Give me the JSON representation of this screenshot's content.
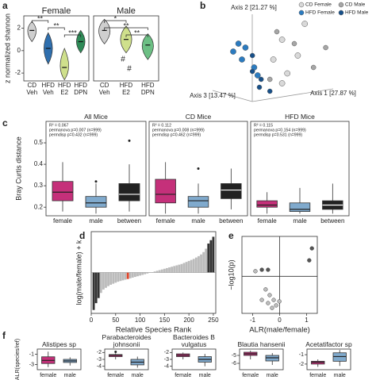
{
  "panel_labels": [
    "a",
    "b",
    "c",
    "d",
    "e",
    "f"
  ],
  "chart_data": [
    {
      "type": "violin",
      "title": "Female",
      "ylabel": "z normalized shannon",
      "ylim": [
        -2.7,
        3.1
      ],
      "yticks": [
        -2,
        0,
        2
      ],
      "categories": [
        "CD Veh",
        "HFD Veh",
        "HFD E2",
        "HFD DPN"
      ],
      "values": [
        1.8,
        0.2,
        -1.5,
        0.8
      ],
      "mins": [
        0.8,
        -1.2,
        -2.6,
        -0.2
      ],
      "maxs": [
        2.6,
        1.6,
        0.2,
        1.8
      ],
      "colors": [
        "#cfcfcf",
        "#2f6fae",
        "#cfe08c",
        "#2e8b57"
      ],
      "brackets": [
        {
          "label": "**",
          "between": [
            0,
            1
          ]
        },
        {
          "label": "**",
          "between": [
            1,
            2
          ]
        },
        {
          "label": "***",
          "between": [
            2,
            3
          ]
        }
      ]
    },
    {
      "type": "violin",
      "title": "Male",
      "ylim": [
        -2.7,
        3.1
      ],
      "categories": [
        "CD Veh",
        "HFD E2",
        "HFD DPN"
      ],
      "values": [
        1.8,
        1.0,
        0.5
      ],
      "mins": [
        0.6,
        -0.2,
        -0.8
      ],
      "maxs": [
        2.8,
        2.2,
        1.5
      ],
      "colors": [
        "#cfcfcf",
        "#cfe08c",
        "#6cbf84"
      ],
      "brackets": [
        {
          "label": "*",
          "between": [
            0,
            1
          ]
        },
        {
          "label": "**",
          "between": [
            0,
            2
          ]
        },
        {
          "label": "**",
          "between": [
            1,
            2
          ]
        }
      ],
      "hashes": [
        {
          "label": "#",
          "category": 1
        },
        {
          "label": "#",
          "category": 1
        }
      ]
    },
    {
      "type": "scatter",
      "axis_labels": [
        "Axis 2 [21.27 %]",
        "Axis 3 [13.47 %]",
        "Axis 1 [27.87 %]"
      ],
      "xlim": [
        0,
        1
      ],
      "ylim": [
        0,
        1
      ],
      "legend": "top-right",
      "series": [
        {
          "name": "CD Female",
          "color": "#d9d9d9",
          "x": [
            0.61,
            0.48,
            0.57,
            0.43,
            0.51,
            0.48
          ],
          "values": [
            0.84,
            0.68,
            0.52,
            0.48,
            0.34,
            0.24
          ]
        },
        {
          "name": "CD Male",
          "color": "#a6a6a6",
          "x": [
            0.55,
            0.73,
            0.45,
            0.41,
            0.66
          ],
          "values": [
            0.64,
            0.6,
            0.76,
            0.28,
            0.4
          ]
        },
        {
          "name": "HFD Female",
          "color": "#2b7bc0",
          "x": [
            0.23,
            0.27,
            0.2,
            0.25,
            0.32,
            0.34
          ],
          "values": [
            0.64,
            0.6,
            0.56,
            0.48,
            0.4,
            0.32
          ]
        },
        {
          "name": "HFD Male",
          "color": "#17508a",
          "x": [
            0.31,
            0.36,
            0.35,
            0.41,
            0.31
          ],
          "values": [
            0.52,
            0.28,
            0.2,
            0.16,
            0.36
          ]
        }
      ]
    },
    {
      "type": "box",
      "title": "All Mice",
      "ylabel": "Bray Curtis distance",
      "ylim": [
        0.16,
        0.6
      ],
      "yticks": [
        0.2,
        0.3,
        0.4,
        0.5
      ],
      "stats": [
        "R² = 0.067",
        "permanova p=0.007 (n=999)",
        "permdisp p=0.432 (n=999)"
      ],
      "categories": [
        "female",
        "male",
        "between"
      ],
      "colors": [
        "#c5307a",
        "#80aacd",
        "#222222"
      ],
      "boxes": [
        {
          "whislo": 0.18,
          "q1": 0.23,
          "med": 0.27,
          "q3": 0.32,
          "whishi": 0.41,
          "fliers": []
        },
        {
          "whislo": 0.17,
          "q1": 0.2,
          "med": 0.22,
          "q3": 0.25,
          "whishi": 0.31,
          "fliers": [
            0.32
          ]
        },
        {
          "whislo": 0.18,
          "q1": 0.23,
          "med": 0.26,
          "q3": 0.31,
          "whishi": 0.4,
          "fliers": [
            0.51
          ]
        }
      ]
    },
    {
      "type": "box",
      "title": "CD Mice",
      "ylim": [
        0.16,
        0.6
      ],
      "stats": [
        "R² = 0.112",
        "permanova p=0.008 (n=999)",
        "permdisp p=0.462 (n=999)"
      ],
      "categories": [
        "female",
        "male",
        "between"
      ],
      "colors": [
        "#c5307a",
        "#80aacd",
        "#222222"
      ],
      "boxes": [
        {
          "whislo": 0.17,
          "q1": 0.22,
          "med": 0.26,
          "q3": 0.33,
          "whishi": 0.41,
          "fliers": []
        },
        {
          "whislo": 0.17,
          "q1": 0.2,
          "med": 0.23,
          "q3": 0.25,
          "whishi": 0.31,
          "fliers": [
            0.38
          ]
        },
        {
          "whislo": 0.19,
          "q1": 0.24,
          "med": 0.28,
          "q3": 0.31,
          "whishi": 0.38,
          "fliers": []
        }
      ]
    },
    {
      "type": "box",
      "title": "HFD Mice",
      "ylim": [
        0.16,
        0.6
      ],
      "stats": [
        "R² = 0.115",
        "permanova p=0.154 (n=999)",
        "permdisp p=0.531 (n=999)"
      ],
      "categories": [
        "female",
        "male",
        "between"
      ],
      "colors": [
        "#c5307a",
        "#80aacd",
        "#222222"
      ],
      "boxes": [
        {
          "whislo": 0.17,
          "q1": 0.2,
          "med": 0.21,
          "q3": 0.23,
          "whishi": 0.27,
          "fliers": []
        },
        {
          "whislo": 0.17,
          "q1": 0.18,
          "med": 0.19,
          "q3": 0.22,
          "whishi": 0.29,
          "fliers": []
        },
        {
          "whislo": 0.17,
          "q1": 0.19,
          "med": 0.21,
          "q3": 0.23,
          "whishi": 0.31,
          "fliers": []
        }
      ]
    },
    {
      "type": "bar",
      "ylabel": "log(male/female) + k",
      "xlabel": "Relative Species Rank",
      "xlim": [
        0,
        255
      ],
      "xticks": [
        0,
        50,
        100,
        150,
        200,
        250
      ],
      "ylim": [
        -1.2,
        1.2
      ],
      "x": [
        5,
        10,
        15,
        20,
        25,
        30,
        35,
        40,
        45,
        50,
        55,
        60,
        65,
        70,
        75,
        80,
        85,
        90,
        95,
        100,
        105,
        110,
        115,
        120,
        125,
        130,
        135,
        140,
        145,
        150,
        155,
        160,
        165,
        170,
        175,
        180,
        185,
        190,
        195,
        200,
        205,
        210,
        215,
        220,
        225,
        230,
        235,
        240,
        245,
        250
      ],
      "values": [
        -1.1,
        -0.9,
        -0.75,
        -0.6,
        -0.5,
        -0.45,
        -0.4,
        -0.36,
        -0.33,
        -0.3,
        -0.27,
        -0.25,
        -0.23,
        -0.21,
        -0.19,
        -0.17,
        -0.15,
        -0.13,
        -0.11,
        -0.09,
        -0.07,
        -0.05,
        -0.03,
        -0.01,
        0.01,
        0.03,
        0.05,
        0.07,
        0.09,
        0.11,
        0.13,
        0.15,
        0.17,
        0.19,
        0.21,
        0.23,
        0.25,
        0.28,
        0.31,
        0.34,
        0.37,
        0.4,
        0.44,
        0.48,
        0.53,
        0.6,
        0.7,
        0.85,
        0.95,
        1.05
      ],
      "colors": [
        "#333333",
        "#333333",
        "#333333",
        "#bbbbbb",
        "#bbbbbb",
        "#bbbbbb",
        "#bbbbbb",
        "#bbbbbb",
        "#bbbbbb",
        "#bbbbbb",
        "#bbbbbb",
        "#bbbbbb",
        "#bbbbbb",
        "#bbbbbb",
        "#e0452b",
        "#bbbbbb",
        "#bbbbbb",
        "#bbbbbb",
        "#bbbbbb",
        "#bbbbbb",
        "#bbbbbb",
        "#bbbbbb",
        "#bbbbbb",
        "#bbbbbb",
        "#bbbbbb",
        "#bbbbbb",
        "#bbbbbb",
        "#bbbbbb",
        "#bbbbbb",
        "#bbbbbb",
        "#bbbbbb",
        "#bbbbbb",
        "#bbbbbb",
        "#bbbbbb",
        "#bbbbbb",
        "#bbbbbb",
        "#bbbbbb",
        "#bbbbbb",
        "#bbbbbb",
        "#bbbbbb",
        "#bbbbbb",
        "#bbbbbb",
        "#bbbbbb",
        "#bbbbbb",
        "#bbbbbb",
        "#bbbbbb",
        "#bbbbbb",
        "#333333",
        "#333333",
        "#333333"
      ]
    },
    {
      "type": "scatter",
      "ylabel": "−log10(p)",
      "xlabel": "ALR(male/female)",
      "xlim": [
        -1.4,
        1.4
      ],
      "xticks": [
        -1,
        0,
        1
      ],
      "ylim": [
        0,
        2.7
      ],
      "threshold": 1.3,
      "vline": 0,
      "series": [
        {
          "color": "#555555",
          "x": [
            -0.66,
            -0.43,
            1.1,
            1.2
          ],
          "values": [
            1.53,
            1.53,
            1.86,
            2.28
          ]
        },
        {
          "color": "#bdbdbd",
          "x": [
            -0.9,
            -0.52,
            -0.37,
            -0.22,
            -0.43,
            -0.13,
            -0.01,
            -0.66,
            -0.28
          ],
          "values": [
            1.48,
            0.84,
            0.64,
            0.47,
            0.36,
            0.28,
            0.42,
            0.47,
            0.19
          ]
        }
      ]
    },
    {
      "type": "box",
      "title": "Alistipes sp",
      "ylabel": "ALR(species/ref)",
      "ylim": [
        -4,
        0
      ],
      "yticks": [
        -1,
        -3
      ],
      "categories": [
        "female",
        "male"
      ],
      "colors": [
        "#c5307a",
        "#80aacd"
      ],
      "boxes": [
        {
          "whislo": -3.5,
          "q1": -2.8,
          "med": -2.2,
          "q3": -1.5,
          "whishi": -0.5,
          "fliers": []
        },
        {
          "whislo": -3.2,
          "q1": -2.6,
          "med": -2.3,
          "q3": -2.0,
          "whishi": -1.6,
          "fliers": []
        }
      ]
    },
    {
      "type": "box",
      "title": "Parabacteroides johnsonii",
      "ylim": [
        -4.5,
        -1.5
      ],
      "yticks": [
        -2,
        -3,
        -4
      ],
      "categories": [
        "female",
        "male"
      ],
      "colors": [
        "#c5307a",
        "#80aacd"
      ],
      "boxes": [
        {
          "whislo": -3.0,
          "q1": -2.6,
          "med": -2.4,
          "q3": -2.3,
          "whishi": -2.1,
          "fliers": [
            -1.9
          ]
        },
        {
          "whislo": -4.2,
          "q1": -3.8,
          "med": -3.4,
          "q3": -3.0,
          "whishi": -2.6,
          "fliers": []
        }
      ]
    },
    {
      "type": "box",
      "title": "Bacteroides B vulgatus",
      "ylim": [
        -4.5,
        -1.5
      ],
      "yticks": [
        -2,
        -3,
        -4
      ],
      "categories": [
        "female",
        "male"
      ],
      "colors": [
        "#c5307a",
        "#80aacd"
      ],
      "boxes": [
        {
          "whislo": -3.0,
          "q1": -2.6,
          "med": -2.4,
          "q3": -2.2,
          "whishi": -2.0,
          "fliers": []
        },
        {
          "whislo": -4.0,
          "q1": -3.4,
          "med": -3.0,
          "q3": -2.6,
          "whishi": -2.2,
          "fliers": []
        }
      ]
    },
    {
      "type": "box",
      "title": "Blautia hansenii",
      "ylim": [
        -6.8,
        -4.2
      ],
      "yticks": [
        -5,
        -6
      ],
      "categories": [
        "female",
        "male"
      ],
      "colors": [
        "#c5307a",
        "#80aacd"
      ],
      "boxes": [
        {
          "whislo": -5.5,
          "q1": -5.0,
          "med": -4.8,
          "q3": -4.6,
          "whishi": -4.4,
          "fliers": []
        },
        {
          "whislo": -6.2,
          "q1": -5.7,
          "med": -5.3,
          "q3": -5.0,
          "whishi": -4.7,
          "fliers": []
        }
      ]
    },
    {
      "type": "box",
      "title": "Acetatifactor sp",
      "ylim": [
        -2.6,
        -0.4
      ],
      "yticks": [
        -1,
        -2
      ],
      "categories": [
        "female",
        "male"
      ],
      "colors": [
        "#c5307a",
        "#80aacd"
      ],
      "boxes": [
        {
          "whislo": -2.3,
          "q1": -2.0,
          "med": -1.8,
          "q3": -1.7,
          "whishi": -1.5,
          "fliers": []
        },
        {
          "whislo": -2.2,
          "q1": -1.7,
          "med": -1.2,
          "q3": -0.8,
          "whishi": -0.5,
          "fliers": []
        }
      ]
    }
  ]
}
